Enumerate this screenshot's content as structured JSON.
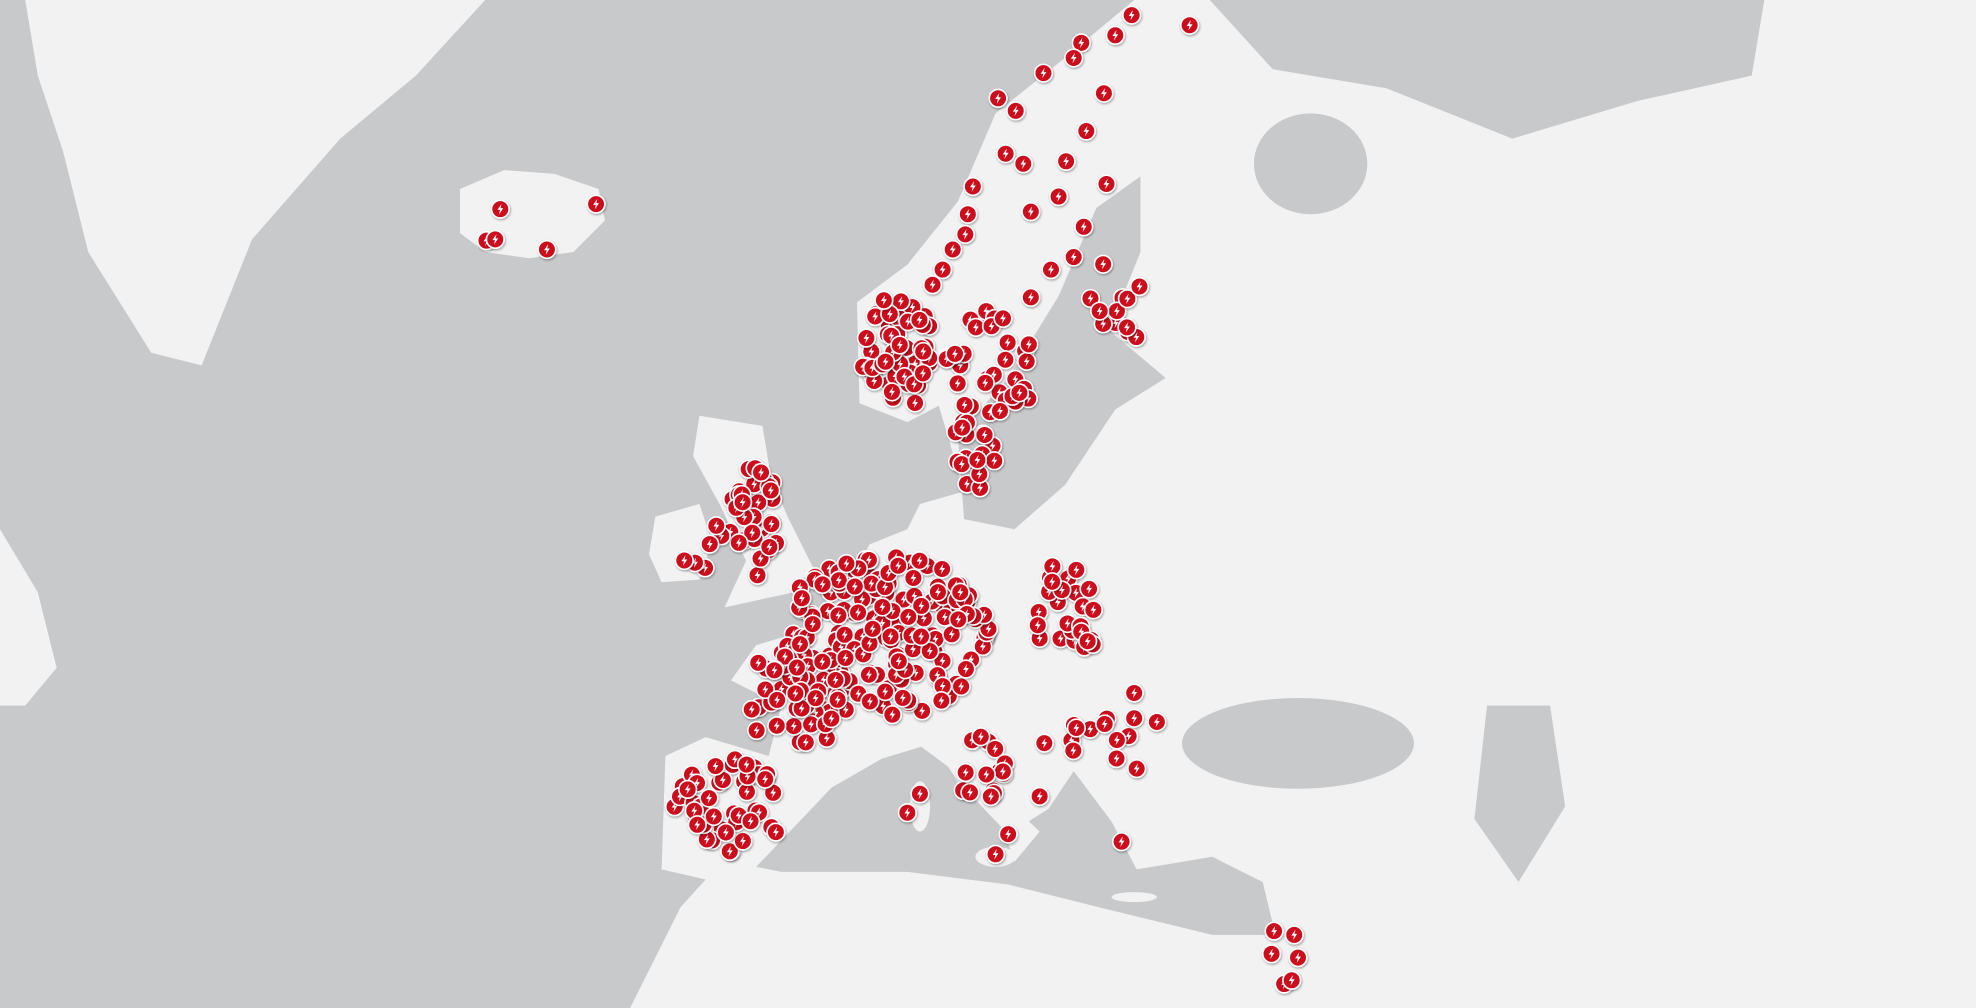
{
  "map": {
    "water_color": "#c8c9cb",
    "land_color": "#f2f2f2",
    "border_color": "#b8b9bb",
    "marker": {
      "icon": "lightning-bolt-icon",
      "fill_color": "#cc0a1e",
      "outline_color": "#ffffff",
      "glyph_color": "#ffffff"
    }
  }
}
